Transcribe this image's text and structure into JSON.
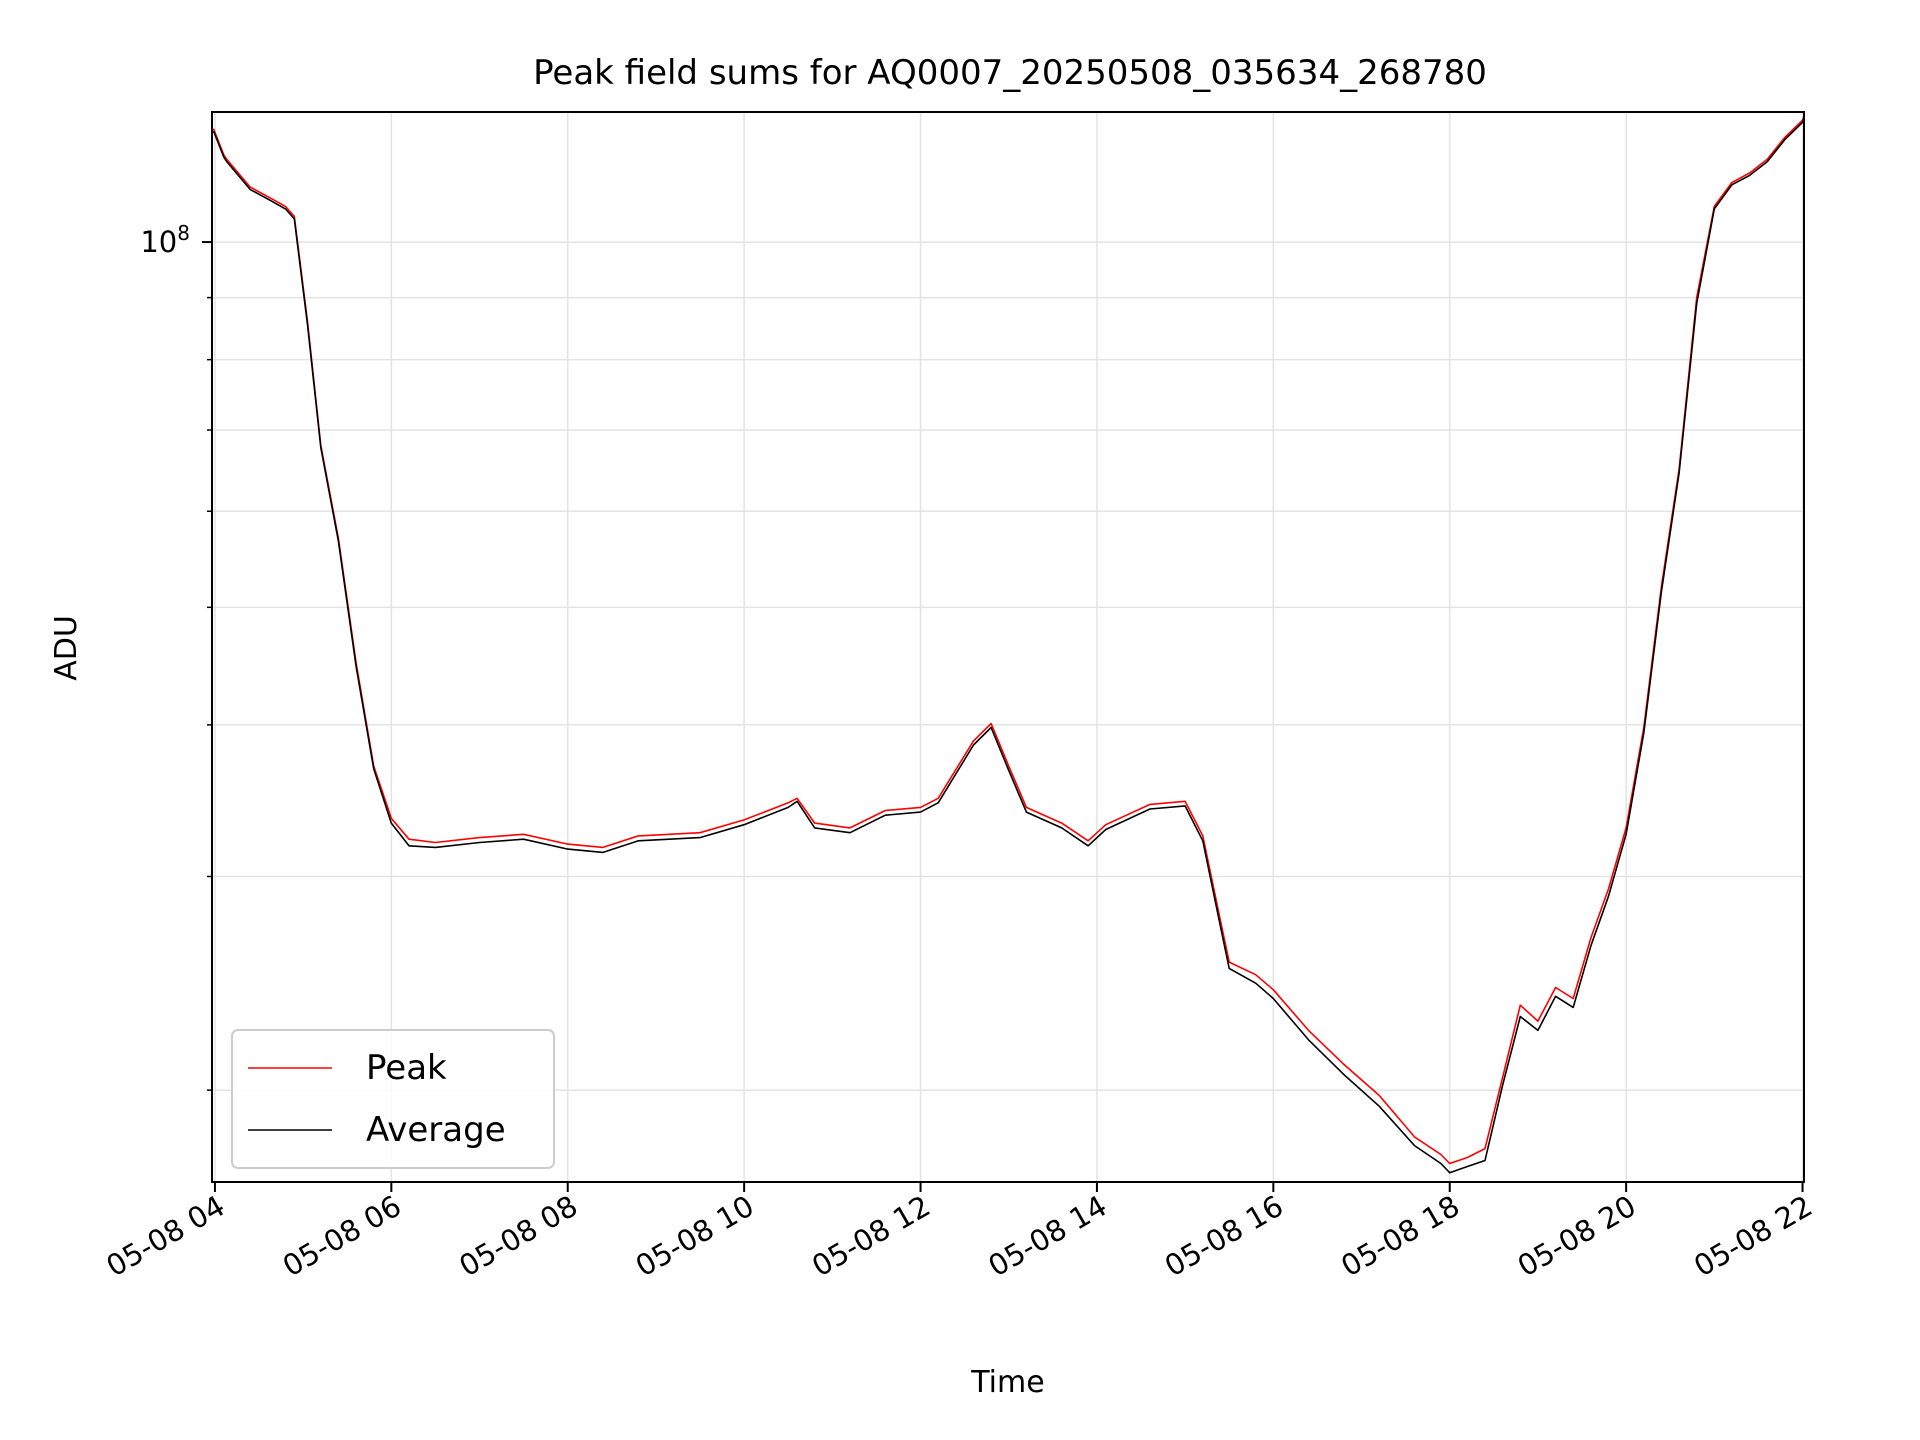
{
  "chart_data": {
    "type": "line",
    "title": "Peak field sums for AQ0007_20250508_035634_268780",
    "xlabel": "Time",
    "ylabel": "ADU",
    "x_unit": "time of day, 2025-05-08",
    "xlim": [
      "03:58",
      "22:01"
    ],
    "x_ticks": [
      {
        "time": "04:00",
        "label": "05-08 04"
      },
      {
        "time": "06:00",
        "label": "05-08 06"
      },
      {
        "time": "08:00",
        "label": "05-08 08"
      },
      {
        "time": "10:00",
        "label": "05-08 10"
      },
      {
        "time": "12:00",
        "label": "05-08 12"
      },
      {
        "time": "14:00",
        "label": "05-08 14"
      },
      {
        "time": "16:00",
        "label": "05-08 16"
      },
      {
        "time": "18:00",
        "label": "05-08 18"
      },
      {
        "time": "20:00",
        "label": "05-08 20"
      },
      {
        "time": "22:00",
        "label": "05-08 22"
      }
    ],
    "y_scale": "log",
    "ylim": [
      16800000,
      128000000
    ],
    "y_major_ticks": [
      {
        "value": 100000000,
        "base": "10",
        "exp": "8"
      }
    ],
    "y_minor_ticks": [
      20000000,
      30000000,
      40000000,
      50000000,
      60000000,
      70000000,
      80000000,
      90000000
    ],
    "grid": true,
    "legend_position": "lower-left",
    "series": [
      {
        "name": "Peak",
        "color": "#ff0000",
        "points": [
          [
            "03:59",
            124000000
          ],
          [
            "04:06",
            118000000
          ],
          [
            "04:08",
            117000000
          ],
          [
            "04:24",
            111000000
          ],
          [
            "04:36",
            109000000
          ],
          [
            "04:48",
            107000000
          ],
          [
            "04:54",
            105000000
          ],
          [
            "05:03",
            86000000
          ],
          [
            "05:12",
            68000000
          ],
          [
            "05:24",
            57000000
          ],
          [
            "05:36",
            45000000
          ],
          [
            "05:48",
            37000000
          ],
          [
            "06:00",
            33500000
          ],
          [
            "06:12",
            32200000
          ],
          [
            "06:30",
            32000000
          ],
          [
            "07:00",
            32300000
          ],
          [
            "07:30",
            32500000
          ],
          [
            "08:00",
            31900000
          ],
          [
            "08:24",
            31700000
          ],
          [
            "08:48",
            32400000
          ],
          [
            "09:30",
            32600000
          ],
          [
            "10:00",
            33400000
          ],
          [
            "10:30",
            34500000
          ],
          [
            "10:36",
            34800000
          ],
          [
            "10:48",
            33200000
          ],
          [
            "11:12",
            32900000
          ],
          [
            "11:36",
            34000000
          ],
          [
            "12:00",
            34200000
          ],
          [
            "12:12",
            34800000
          ],
          [
            "12:36",
            38800000
          ],
          [
            "12:48",
            40100000
          ],
          [
            "13:00",
            37000000
          ],
          [
            "13:12",
            34200000
          ],
          [
            "13:36",
            33200000
          ],
          [
            "13:54",
            32100000
          ],
          [
            "14:06",
            33100000
          ],
          [
            "14:36",
            34400000
          ],
          [
            "15:00",
            34600000
          ],
          [
            "15:12",
            32400000
          ],
          [
            "15:24",
            27600000
          ],
          [
            "15:30",
            25500000
          ],
          [
            "15:48",
            24900000
          ],
          [
            "16:00",
            24200000
          ],
          [
            "16:24",
            22400000
          ],
          [
            "16:48",
            21000000
          ],
          [
            "17:12",
            19800000
          ],
          [
            "17:36",
            18300000
          ],
          [
            "17:54",
            17700000
          ],
          [
            "18:00",
            17400000
          ],
          [
            "18:12",
            17600000
          ],
          [
            "18:24",
            17900000
          ],
          [
            "18:36",
            20500000
          ],
          [
            "18:48",
            23500000
          ],
          [
            "19:00",
            22800000
          ],
          [
            "19:12",
            24300000
          ],
          [
            "19:24",
            23800000
          ],
          [
            "19:36",
            26700000
          ],
          [
            "19:48",
            29300000
          ],
          [
            "20:00",
            32900000
          ],
          [
            "20:12",
            39800000
          ],
          [
            "20:24",
            52000000
          ],
          [
            "20:36",
            65000000
          ],
          [
            "20:48",
            90000000
          ],
          [
            "21:00",
            107000000
          ],
          [
            "21:12",
            112000000
          ],
          [
            "21:24",
            114000000
          ],
          [
            "21:36",
            117000000
          ],
          [
            "21:48",
            122000000
          ],
          [
            "22:00",
            126000000
          ],
          [
            "22:01",
            127000000
          ]
        ]
      },
      {
        "name": "Average",
        "color": "#000000",
        "points": [
          [
            "03:59",
            123500000
          ],
          [
            "04:06",
            117500000
          ],
          [
            "04:08",
            116500000
          ],
          [
            "04:24",
            110500000
          ],
          [
            "04:36",
            108500000
          ],
          [
            "04:48",
            106500000
          ],
          [
            "04:54",
            104500000
          ],
          [
            "05:03",
            85500000
          ],
          [
            "05:12",
            67700000
          ],
          [
            "05:24",
            56700000
          ],
          [
            "05:36",
            44700000
          ],
          [
            "05:48",
            36800000
          ],
          [
            "06:00",
            33200000
          ],
          [
            "06:12",
            31800000
          ],
          [
            "06:30",
            31700000
          ],
          [
            "07:00",
            32000000
          ],
          [
            "07:30",
            32200000
          ],
          [
            "08:00",
            31600000
          ],
          [
            "08:24",
            31400000
          ],
          [
            "08:48",
            32100000
          ],
          [
            "09:30",
            32300000
          ],
          [
            "10:00",
            33100000
          ],
          [
            "10:30",
            34200000
          ],
          [
            "10:36",
            34600000
          ],
          [
            "10:48",
            32900000
          ],
          [
            "11:12",
            32600000
          ],
          [
            "11:36",
            33700000
          ],
          [
            "12:00",
            33900000
          ],
          [
            "12:12",
            34500000
          ],
          [
            "12:36",
            38500000
          ],
          [
            "12:48",
            39800000
          ],
          [
            "13:00",
            36700000
          ],
          [
            "13:12",
            33900000
          ],
          [
            "13:36",
            32900000
          ],
          [
            "13:54",
            31800000
          ],
          [
            "14:06",
            32800000
          ],
          [
            "14:36",
            34100000
          ],
          [
            "15:00",
            34300000
          ],
          [
            "15:12",
            32100000
          ],
          [
            "15:24",
            27300000
          ],
          [
            "15:30",
            25200000
          ],
          [
            "15:48",
            24500000
          ],
          [
            "16:00",
            23800000
          ],
          [
            "16:24",
            22000000
          ],
          [
            "16:48",
            20600000
          ],
          [
            "17:12",
            19400000
          ],
          [
            "17:36",
            18000000
          ],
          [
            "17:54",
            17400000
          ],
          [
            "18:00",
            17100000
          ],
          [
            "18:12",
            17300000
          ],
          [
            "18:24",
            17500000
          ],
          [
            "18:36",
            20200000
          ],
          [
            "18:48",
            23000000
          ],
          [
            "19:00",
            22400000
          ],
          [
            "19:12",
            23900000
          ],
          [
            "19:24",
            23400000
          ],
          [
            "19:36",
            26300000
          ],
          [
            "19:48",
            28900000
          ],
          [
            "20:00",
            32500000
          ],
          [
            "20:12",
            39400000
          ],
          [
            "20:24",
            51500000
          ],
          [
            "20:36",
            64500000
          ],
          [
            "20:48",
            89000000
          ],
          [
            "21:00",
            106500000
          ],
          [
            "21:12",
            111500000
          ],
          [
            "21:24",
            113500000
          ],
          [
            "21:36",
            116500000
          ],
          [
            "21:48",
            121500000
          ],
          [
            "22:00",
            125500000
          ],
          [
            "22:01",
            126500000
          ]
        ]
      }
    ]
  }
}
